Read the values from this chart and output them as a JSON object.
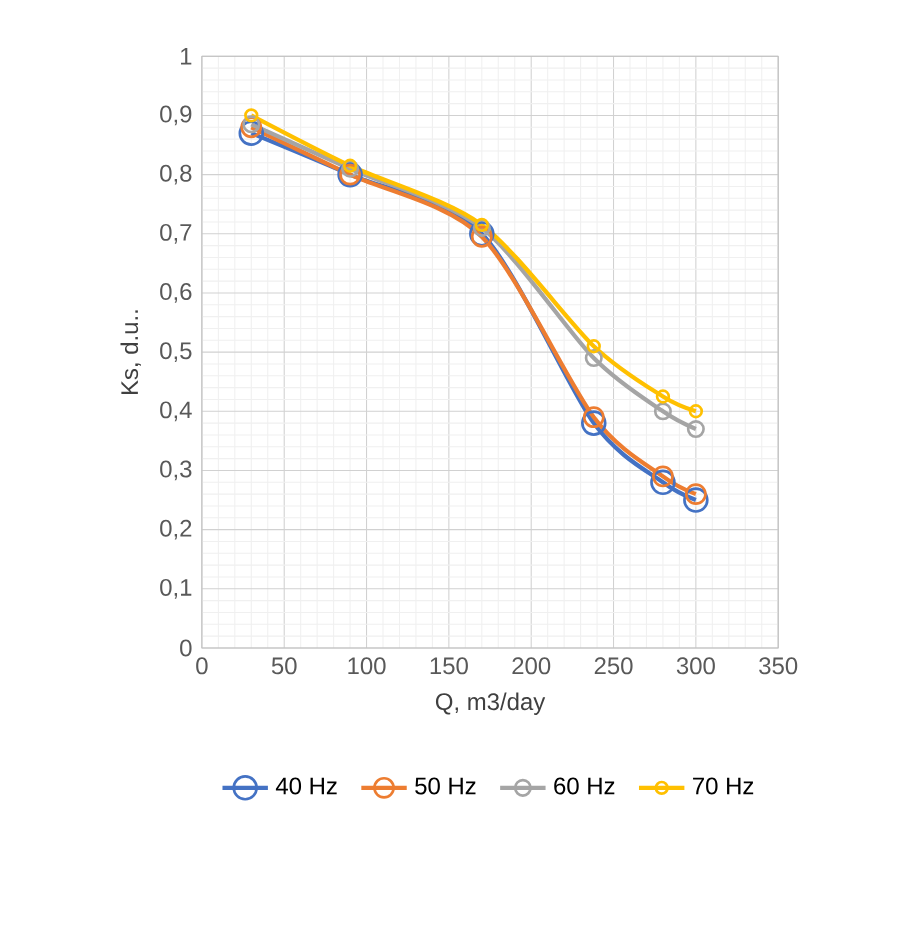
{
  "chart_data": {
    "type": "line",
    "xlabel": "Q, m3/day",
    "ylabel": "Ks, d.u..",
    "x": [
      30,
      90,
      170,
      238,
      280,
      300
    ],
    "series": [
      {
        "name": "40 Hz",
        "color": "#4472c4",
        "values": [
          0.87,
          0.8,
          0.7,
          0.38,
          0.28,
          0.25
        ]
      },
      {
        "name": "50 Hz",
        "color": "#ed7d31",
        "values": [
          0.88,
          0.8,
          0.695,
          0.39,
          0.29,
          0.26
        ]
      },
      {
        "name": "60 Hz",
        "color": "#a5a5a5",
        "values": [
          0.885,
          0.81,
          0.71,
          0.49,
          0.4,
          0.37
        ]
      },
      {
        "name": "70 Hz",
        "color": "#ffc000",
        "values": [
          0.9,
          0.815,
          0.715,
          0.51,
          0.425,
          0.4
        ]
      }
    ],
    "xlim": [
      0,
      350
    ],
    "xticks": [
      0,
      50,
      100,
      150,
      200,
      250,
      300,
      350
    ],
    "ylim": [
      0,
      1
    ],
    "yticks": [
      0,
      {
        "value": 0.1,
        "label": "0,1"
      },
      {
        "value": 0.2,
        "label": "0,2"
      },
      {
        "value": 0.3,
        "label": "0,3"
      },
      {
        "value": 0.4,
        "label": "0,4"
      },
      {
        "value": 0.5,
        "label": "0,5"
      },
      {
        "value": 0.6,
        "label": "0,6"
      },
      {
        "value": 0.7,
        "label": "0,7"
      },
      {
        "value": 0.8,
        "label": "0,8"
      },
      {
        "value": 0.9,
        "label": "0,9"
      },
      1
    ],
    "grid": true,
    "legend": "bottom",
    "marker": "circle",
    "line_style": "solid"
  }
}
